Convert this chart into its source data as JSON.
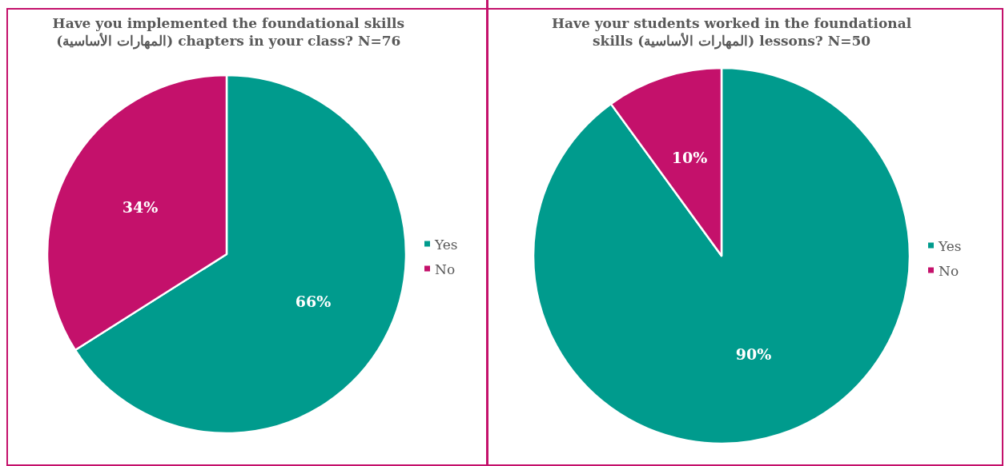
{
  "chart_data": [
    {
      "type": "pie",
      "title": "Have you implemented the foundational skills (المهارات الأساسية) chapters in your class? N=76",
      "categories": [
        "Yes",
        "No"
      ],
      "values": [
        66,
        34
      ],
      "value_labels": [
        "66%",
        "34%"
      ],
      "colors": [
        "#009b8d",
        "#c4116b"
      ],
      "legend": "right"
    },
    {
      "type": "pie",
      "title": "Have your students worked in the foundational skills (المهارات الأساسية) lessons? N=50",
      "categories": [
        "Yes",
        "No"
      ],
      "values": [
        90,
        10
      ],
      "value_labels": [
        "90%",
        "10%"
      ],
      "colors": [
        "#009b8d",
        "#c4116b"
      ],
      "legend": "right"
    }
  ]
}
